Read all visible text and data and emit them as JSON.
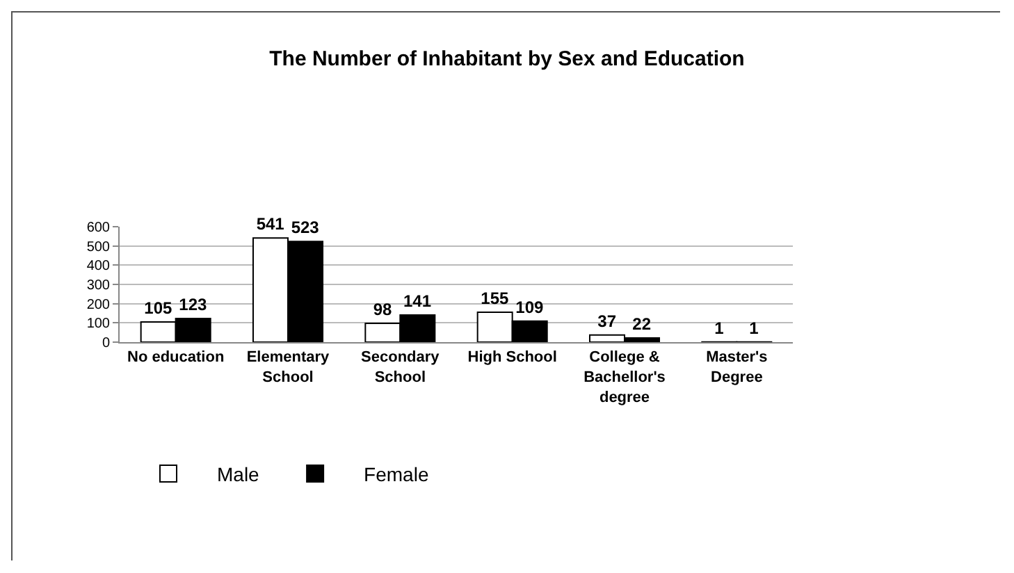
{
  "chart_data": {
    "type": "bar",
    "title": "The Number of Inhabitant by Sex and Education",
    "categories": [
      "No education",
      "Elementary School",
      "Secondary School",
      "High School",
      "College & Bachellor's degree",
      "Master's Degree"
    ],
    "series": [
      {
        "name": "Male",
        "color": "#ffffff",
        "values": [
          105,
          541,
          98,
          155,
          37,
          1
        ]
      },
      {
        "name": "Female",
        "color": "#000000",
        "values": [
          123,
          523,
          141,
          109,
          22,
          1
        ]
      }
    ],
    "ylim": [
      0,
      600
    ],
    "yticks": [
      0,
      100,
      200,
      300,
      400,
      500,
      600
    ],
    "grid": "y",
    "legend": "bottom",
    "data_labels": true
  }
}
